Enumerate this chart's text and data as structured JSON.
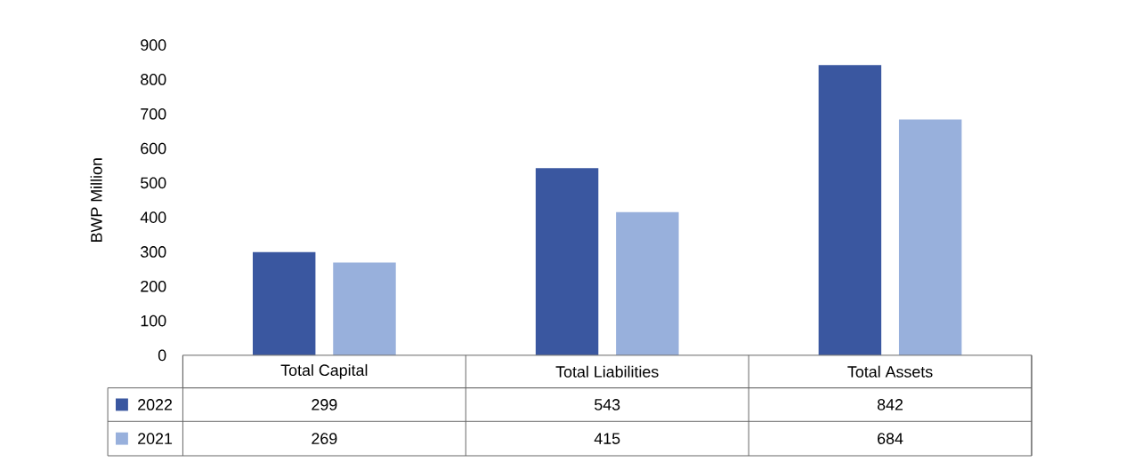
{
  "chart_data": {
    "type": "bar",
    "ylabel": "BWP Million",
    "categories": [
      "Total Capital",
      "Total Liabilities",
      "Total Assets"
    ],
    "series": [
      {
        "name": "2022",
        "color": "#3a57a0",
        "values": [
          299,
          543,
          842
        ]
      },
      {
        "name": "2021",
        "color": "#98b0dc",
        "values": [
          269,
          415,
          684
        ]
      }
    ],
    "ylim": [
      0,
      900
    ],
    "yticks": [
      0,
      100,
      200,
      300,
      400,
      500,
      600,
      700,
      800,
      900
    ],
    "data_labels": true,
    "legend": "bottom",
    "grid": false
  }
}
